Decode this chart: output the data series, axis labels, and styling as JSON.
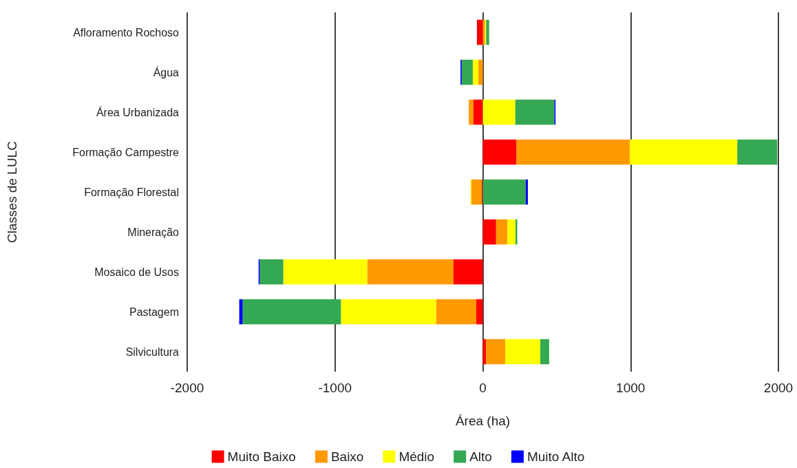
{
  "chart_data": {
    "type": "bar",
    "orientation": "horizontal",
    "stacked": true,
    "xlabel": "Área (ha)",
    "ylabel": "Classes de LULC",
    "categories": [
      "Afloramento Rochoso",
      "Água",
      "Área Urbanizada",
      "Formação Campestre",
      "Formação Florestal",
      "Mineração",
      "Mosaico de Usos",
      "Pastagem",
      "Silvicultura"
    ],
    "series": [
      {
        "name": "Muito Baixo",
        "color": "#ff0000",
        "values": [
          -40,
          0,
          -65,
          228,
          -8,
          90,
          -200,
          -46,
          22
        ]
      },
      {
        "name": "Baixo",
        "color": "#ff9900",
        "values": [
          15,
          -30,
          -30,
          766,
          -70,
          77,
          -582,
          -270,
          130
        ]
      },
      {
        "name": "Médio",
        "color": "#ffff00",
        "values": [
          8,
          -38,
          220,
          728,
          -5,
          54,
          -568,
          -644,
          237
        ]
      },
      {
        "name": "Alto",
        "color": "#34a853",
        "values": [
          20,
          -75,
          264,
          270,
          290,
          12,
          -159,
          -665,
          60
        ]
      },
      {
        "name": "Muito Alto",
        "color": "#0000ff",
        "values": [
          0,
          -8,
          8,
          0,
          15,
          0,
          -8,
          -23,
          0
        ]
      }
    ],
    "xlim": [
      -2000,
      2000
    ],
    "xticks": [
      -2000,
      -1000,
      0,
      1000,
      2000
    ],
    "grid": "x",
    "legend": "bottom"
  }
}
